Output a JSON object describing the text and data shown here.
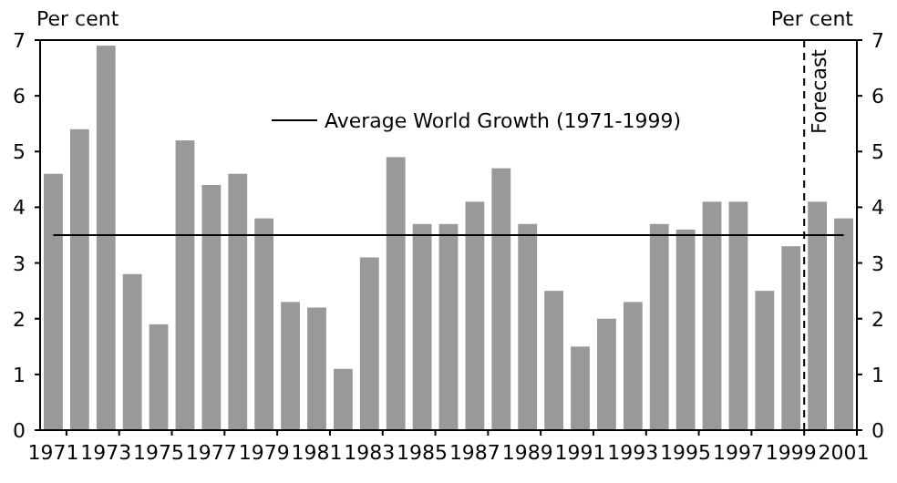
{
  "chart_data": {
    "type": "bar",
    "ylabel": "Per cent",
    "y2label": "Per cent",
    "x": [
      1971,
      1972,
      1973,
      1974,
      1975,
      1976,
      1977,
      1978,
      1979,
      1980,
      1981,
      1982,
      1983,
      1984,
      1985,
      1986,
      1987,
      1988,
      1989,
      1990,
      1991,
      1992,
      1993,
      1994,
      1995,
      1996,
      1997,
      1998,
      1999,
      2000,
      2001
    ],
    "values": [
      4.6,
      5.4,
      6.9,
      2.8,
      1.9,
      5.2,
      4.4,
      4.6,
      3.8,
      2.3,
      2.2,
      1.1,
      3.1,
      4.9,
      3.7,
      3.7,
      4.1,
      4.7,
      3.7,
      2.5,
      1.5,
      2.0,
      2.3,
      3.7,
      3.6,
      4.1,
      4.1,
      2.5,
      3.3,
      4.1,
      3.8
    ],
    "color": "#999999",
    "xlim": [
      1970.5,
      2001.5
    ],
    "xticks": [
      1971,
      1973,
      1975,
      1977,
      1979,
      1981,
      1983,
      1985,
      1987,
      1989,
      1991,
      1993,
      1995,
      1997,
      1999,
      2001
    ],
    "ylim": [
      0,
      7
    ],
    "yticks": [
      0,
      1,
      2,
      3,
      4,
      5,
      6,
      7
    ],
    "y2lim": [
      0,
      7
    ],
    "y2ticks": [
      0,
      1,
      2,
      3,
      4,
      5,
      6,
      7
    ],
    "ref_lines": [
      {
        "axis": "y",
        "value": 3.5,
        "label": "Average World Growth (1971-1999)",
        "color": "#000000",
        "line_style": "solid"
      },
      {
        "axis": "x",
        "value": 1999.5,
        "label": "Forecast",
        "color": "#000000",
        "line_style": "dashed"
      }
    ],
    "grid": false
  }
}
